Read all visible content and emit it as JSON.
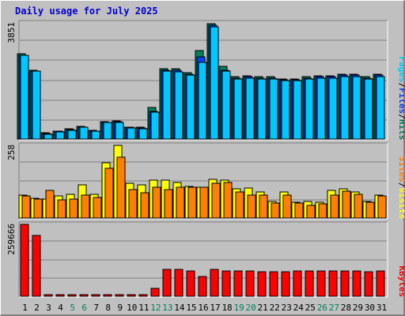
{
  "title": "Daily usage for July 2025",
  "colors": {
    "background": "#c0c0c0",
    "hits": "#00805c",
    "files": "#0040ff",
    "pages": "#00c8ff",
    "visits": "#ffff00",
    "sites": "#ff8000",
    "kbytes": "#ff0000",
    "weekend_label": "#00805c"
  },
  "chart_data": [
    {
      "type": "bar",
      "panel": "hits-files-pages",
      "ymax_label": "3851",
      "ylim": [
        0,
        3851
      ],
      "grid": true,
      "legend": [
        "Pages",
        "/",
        "Files",
        "/",
        "Hits"
      ],
      "categories": [
        "1",
        "2",
        "3",
        "4",
        "5",
        "6",
        "7",
        "8",
        "9",
        "10",
        "11",
        "12",
        "13",
        "14",
        "15",
        "16",
        "17",
        "18",
        "19",
        "20",
        "21",
        "22",
        "23",
        "24",
        "25",
        "26",
        "27",
        "28",
        "29",
        "30",
        "31"
      ],
      "series": [
        {
          "name": "Hits",
          "values": [
            2830,
            2270,
            210,
            270,
            340,
            420,
            290,
            580,
            600,
            400,
            380,
            1040,
            2340,
            2340,
            2200,
            2940,
            3820,
            2420,
            2060,
            2090,
            2060,
            2060,
            2000,
            2000,
            2060,
            2090,
            2090,
            2140,
            2140,
            2060,
            2140
          ]
        },
        {
          "name": "Files",
          "values": [
            2790,
            2250,
            190,
            250,
            320,
            400,
            270,
            560,
            580,
            380,
            360,
            920,
            2290,
            2290,
            2160,
            2730,
            3770,
            2290,
            2020,
            2060,
            2030,
            2030,
            1970,
            1970,
            2030,
            2060,
            2060,
            2110,
            2110,
            2030,
            2110
          ]
        },
        {
          "name": "Pages",
          "values": [
            2780,
            2240,
            170,
            240,
            300,
            380,
            260,
            540,
            560,
            370,
            340,
            880,
            2250,
            2220,
            2120,
            2540,
            3730,
            2250,
            1990,
            2030,
            2000,
            2000,
            1940,
            1940,
            2000,
            2030,
            2030,
            2080,
            2080,
            2000,
            2080
          ]
        }
      ]
    },
    {
      "type": "bar",
      "panel": "visits-sites",
      "ymax_label": "258",
      "ylim": [
        0,
        258
      ],
      "grid": true,
      "legend": [
        "Sites",
        "/",
        "Visits"
      ],
      "categories": [
        "1",
        "2",
        "3",
        "4",
        "5",
        "6",
        "7",
        "8",
        "9",
        "10",
        "11",
        "12",
        "13",
        "14",
        "15",
        "16",
        "17",
        "18",
        "19",
        "20",
        "21",
        "22",
        "23",
        "24",
        "25",
        "26",
        "27",
        "28",
        "29",
        "30",
        "31"
      ],
      "series": [
        {
          "name": "Visits",
          "values": [
            80,
            70,
            67,
            78,
            83,
            117,
            84,
            196,
            258,
            122,
            118,
            135,
            135,
            126,
            112,
            108,
            138,
            136,
            105,
            106,
            93,
            60,
            93,
            55,
            58,
            57,
            97,
            105,
            92,
            58,
            80
          ]
        },
        {
          "name": "Sites",
          "values": [
            78,
            68,
            98,
            64,
            68,
            82,
            72,
            178,
            215,
            102,
            90,
            110,
            101,
            108,
            108,
            108,
            122,
            127,
            93,
            82,
            81,
            54,
            80,
            52,
            45,
            50,
            82,
            95,
            83,
            55,
            78
          ]
        }
      ]
    },
    {
      "type": "bar",
      "panel": "kbytes",
      "ymax_label": "259666",
      "ylim": [
        0,
        259666
      ],
      "grid": true,
      "legend": [
        "KBytes"
      ],
      "categories": [
        "1",
        "2",
        "3",
        "4",
        "5",
        "6",
        "7",
        "8",
        "9",
        "10",
        "11",
        "12",
        "13",
        "14",
        "15",
        "16",
        "17",
        "18",
        "19",
        "20",
        "21",
        "22",
        "23",
        "24",
        "25",
        "26",
        "27",
        "28",
        "29",
        "30",
        "31"
      ],
      "series": [
        {
          "name": "KBytes",
          "values": [
            259666,
            219000,
            1500,
            1500,
            1500,
            1500,
            1500,
            1500,
            1500,
            1500,
            5000,
            29000,
            98000,
            98000,
            90000,
            70000,
            96000,
            92000,
            90000,
            92000,
            88000,
            88000,
            88000,
            92000,
            90000,
            92000,
            90000,
            92000,
            92000,
            88000,
            90000
          ]
        }
      ]
    }
  ],
  "x_labels": [
    "1",
    "2",
    "3",
    "4",
    "5",
    "6",
    "7",
    "8",
    "9",
    "10",
    "11",
    "12",
    "13",
    "14",
    "15",
    "16",
    "17",
    "18",
    "19",
    "20",
    "21",
    "22",
    "23",
    "24",
    "25",
    "26",
    "27",
    "28",
    "29",
    "30",
    "31"
  ],
  "weekend_days": [
    "5",
    "6",
    "12",
    "13",
    "19",
    "20",
    "26",
    "27"
  ]
}
